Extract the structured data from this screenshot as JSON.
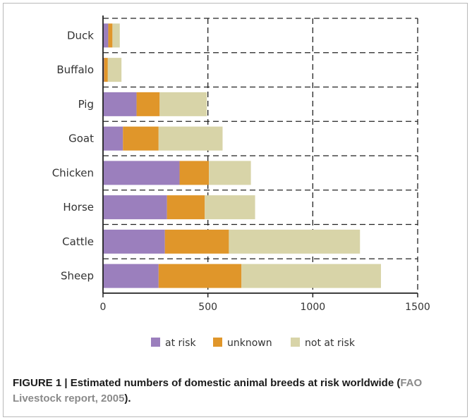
{
  "caption": {
    "figure_label": "FIGURE 1 | ",
    "text": "Estimated numbers of domestic animal breeds at risk worldwide (",
    "source": "FAO Livestock report, 2005",
    "end": ")."
  },
  "chart_data": {
    "type": "bar",
    "orientation": "horizontal",
    "stacked": true,
    "categories": [
      "Duck",
      "Buffalo",
      "Pig",
      "Goat",
      "Chicken",
      "Horse",
      "Cattle",
      "Sheep"
    ],
    "series": [
      {
        "name": "at risk",
        "color": "#9b7fbd",
        "values": [
          25,
          5,
          160,
          95,
          365,
          305,
          295,
          265
        ]
      },
      {
        "name": "unknown",
        "color": "#e0962a",
        "values": [
          20,
          18,
          110,
          170,
          140,
          180,
          305,
          395
        ]
      },
      {
        "name": "not at risk",
        "color": "#d8d4a8",
        "values": [
          35,
          65,
          225,
          305,
          200,
          240,
          625,
          665
        ]
      }
    ],
    "xlim": [
      0,
      1500
    ],
    "xticks": [
      "0",
      "500",
      "1000",
      "1500"
    ],
    "grid": "dashed",
    "legend": "bottom"
  },
  "colors": {
    "axis": "#222222",
    "grid": "#222222"
  }
}
